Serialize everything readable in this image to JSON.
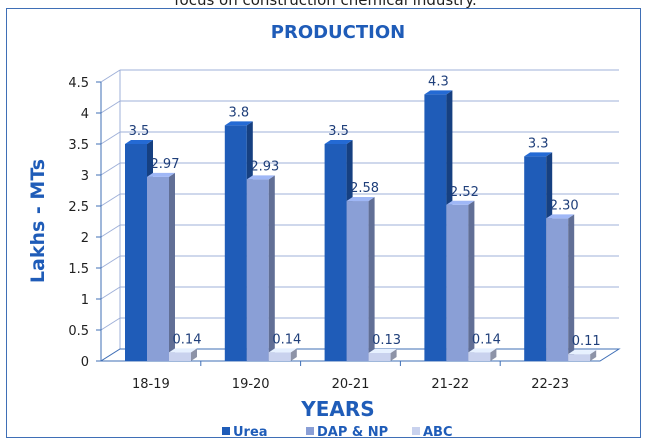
{
  "page": {
    "top_caption": "focus on construction chemical industry."
  },
  "chart_data": {
    "type": "bar",
    "title": "PRODUCTION",
    "xlabel": "YEARS",
    "ylabel": "Lakhs - MTs",
    "categories": [
      "18-19",
      "19-20",
      "20-21",
      "21-22",
      "22-23"
    ],
    "ylim": [
      0,
      4.5
    ],
    "yticks": [
      "0",
      "0.5",
      "1",
      "1.5",
      "2",
      "2.5",
      "3",
      "3.5",
      "4",
      "4.5"
    ],
    "grid": true,
    "legend_position": "bottom",
    "series": [
      {
        "name": "Urea",
        "values": [
          3.5,
          3.8,
          3.5,
          4.3,
          3.3
        ],
        "labels": [
          "3.5",
          "3.8",
          "3.5",
          "4.3",
          "3.3"
        ],
        "color": "#1f5cb8"
      },
      {
        "name": "DAP & NP",
        "values": [
          2.97,
          2.93,
          2.58,
          2.52,
          2.3
        ],
        "labels": [
          "2.97",
          "2.93",
          "2.58",
          "2.52",
          "2.30"
        ],
        "color": "#8a9fd6"
      },
      {
        "name": "ABC",
        "values": [
          0.14,
          0.14,
          0.13,
          0.14,
          0.11
        ],
        "labels": [
          "0.14",
          "0.14",
          "0.13",
          "0.14",
          "0.11"
        ],
        "color": "#c9d2ee"
      }
    ]
  }
}
